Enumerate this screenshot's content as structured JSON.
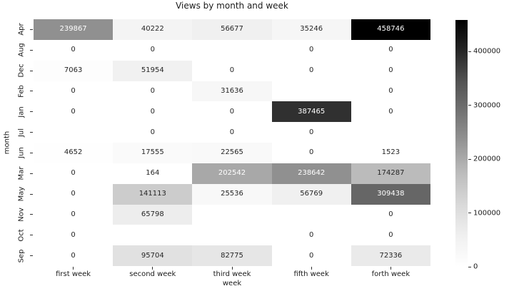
{
  "chart_data": {
    "type": "heatmap",
    "title": "Views by month and week",
    "xlabel": "week",
    "ylabel": "month",
    "x_categories": [
      "first week",
      "second week",
      "third week",
      "fifth week",
      "forth week"
    ],
    "y_categories": [
      "Apr",
      "Aug",
      "Dec",
      "Feb",
      "Jan",
      "Jul",
      "Jun",
      "Mar",
      "May",
      "Nov",
      "Oct",
      "Sep"
    ],
    "values": [
      [
        239867,
        40222,
        56677,
        35246,
        458746
      ],
      [
        0,
        0,
        null,
        0,
        0
      ],
      [
        7063,
        51954,
        0,
        0,
        0
      ],
      [
        0,
        0,
        31636,
        null,
        0
      ],
      [
        0,
        0,
        0,
        387465,
        0
      ],
      [
        null,
        0,
        0,
        0,
        null
      ],
      [
        4652,
        17555,
        22565,
        0,
        1523
      ],
      [
        0,
        164,
        202542,
        238642,
        174287
      ],
      [
        0,
        141113,
        25536,
        56769,
        309438
      ],
      [
        0,
        65798,
        null,
        null,
        0
      ],
      [
        0,
        null,
        null,
        0,
        0
      ],
      [
        0,
        95704,
        82775,
        0,
        72336
      ]
    ],
    "null_cells_note": "blank cells contain no value and render as white",
    "colormap": "Greys",
    "vmin": 0,
    "vmax": 458746,
    "annotations": "integer value shown in each non-empty cell",
    "legend_position": "colorbar right",
    "grid": false,
    "colorbar": {
      "tick_values": [
        0,
        100000,
        200000,
        300000,
        400000
      ],
      "tick_labels": [
        "0",
        "100000",
        "200000",
        "300000",
        "400000"
      ],
      "top_color": "#000000",
      "bottom_color": "#ffffff"
    },
    "colors": {
      "annotation_dark": "#262626",
      "annotation_light": "#ffffff",
      "background": "#ffffff",
      "tick": "#333333",
      "text": "#1a1a1a"
    }
  }
}
